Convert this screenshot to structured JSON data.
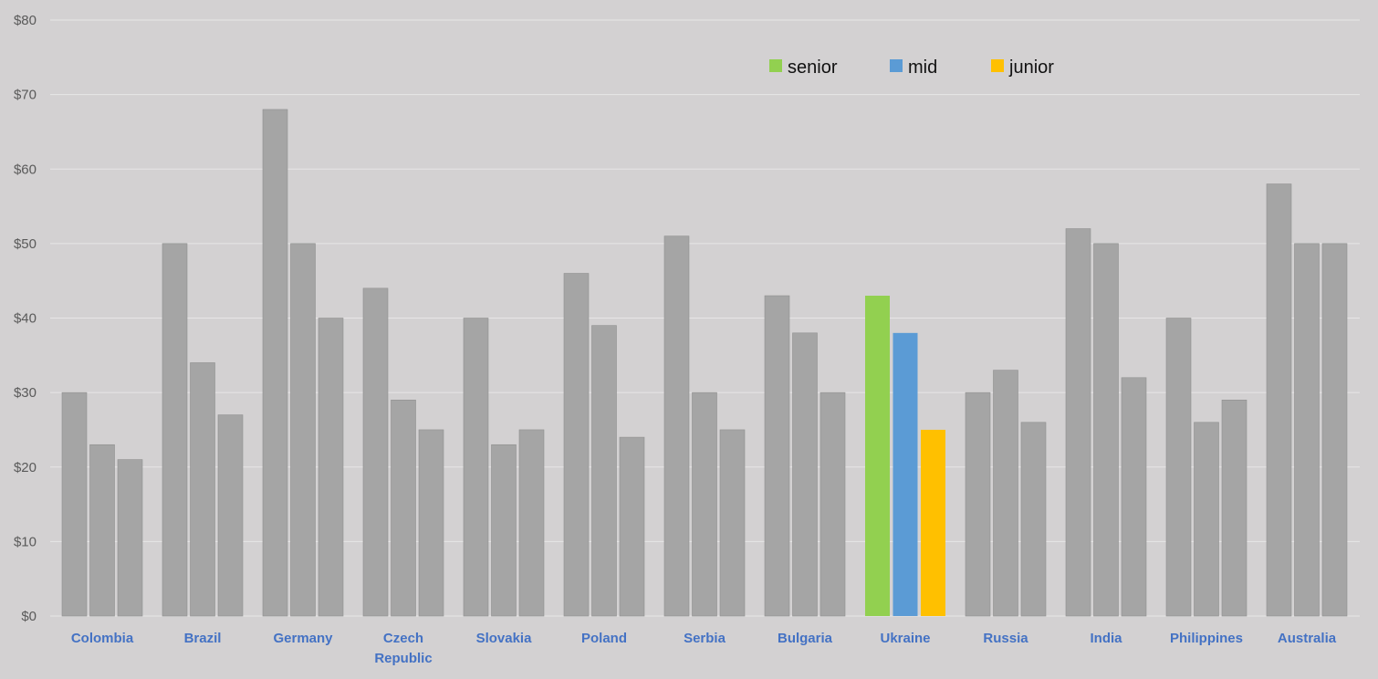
{
  "chart_data": {
    "type": "bar",
    "title": "",
    "xlabel": "",
    "ylabel": "",
    "ylim": [
      0,
      80
    ],
    "y_ticks": [
      "$0",
      "$10",
      "$20",
      "$30",
      "$40",
      "$50",
      "$60",
      "$70",
      "$80"
    ],
    "grid": true,
    "legend_position": "top-right",
    "categories": [
      [
        "Colombia"
      ],
      [
        "Brazil"
      ],
      [
        "Germany"
      ],
      [
        "Czech",
        "Republic"
      ],
      [
        "Slovakia"
      ],
      [
        "Poland"
      ],
      [
        "Serbia"
      ],
      [
        "Bulgaria"
      ],
      [
        "Ukraine"
      ],
      [
        "Russia"
      ],
      [
        "India"
      ],
      [
        "Philippines"
      ],
      [
        "Australia"
      ]
    ],
    "series": [
      {
        "name": "senior",
        "color": "#92d050",
        "values": [
          30,
          50,
          68,
          44,
          40,
          46,
          51,
          43,
          43,
          30,
          52,
          40,
          58
        ]
      },
      {
        "name": "mid",
        "color": "#5b9bd5",
        "values": [
          23,
          34,
          50,
          29,
          23,
          39,
          30,
          38,
          38,
          33,
          50,
          26,
          50
        ]
      },
      {
        "name": "junior",
        "color": "#ffc000",
        "values": [
          21,
          27,
          40,
          25,
          25,
          24,
          25,
          30,
          25,
          26,
          32,
          29,
          50
        ]
      }
    ],
    "highlight_category_index": 8,
    "default_bar_color": "#a5a5a5",
    "gridline_color": "#e7e6e6"
  }
}
